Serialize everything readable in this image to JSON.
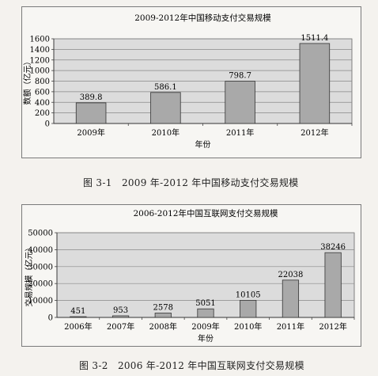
{
  "chart_data": [
    {
      "type": "bar",
      "title": "2009-2012年中国移动支付交易规模",
      "xlabel": "年份",
      "ylabel": "数额（亿元）",
      "categories": [
        "2009年",
        "2010年",
        "2011年",
        "2012年"
      ],
      "values": [
        389.8,
        586.1,
        798.7,
        1511.4
      ],
      "data_labels": [
        "389.8",
        "586.1",
        "798.7",
        "1511.4"
      ],
      "ylim": [
        0,
        1600
      ],
      "yticks": [
        "0",
        "200",
        "400",
        "600",
        "800",
        "1000",
        "1200",
        "1400",
        "1600"
      ],
      "grid": true,
      "colors": {
        "bar": "#a9a9a9",
        "grid": "#888888",
        "plot_bg": "#dcdcdc"
      }
    },
    {
      "type": "bar",
      "title": "2006-2012年中国互联网支付交易规模",
      "xlabel": "年份",
      "ylabel": "交易规模（亿元）",
      "categories": [
        "2006年",
        "2007年",
        "2008年",
        "2009年",
        "2010年",
        "2011年",
        "2012年"
      ],
      "values": [
        451,
        953,
        2578,
        5051,
        10105,
        22038,
        38246
      ],
      "data_labels": [
        "451",
        "953",
        "2578",
        "5051",
        "10105",
        "22038",
        "38246"
      ],
      "ylim": [
        0,
        50000
      ],
      "yticks": [
        "0",
        "10000",
        "20000",
        "30000",
        "40000",
        "50000"
      ],
      "grid": true,
      "colors": {
        "bar": "#a9a9a9",
        "grid": "#888888",
        "plot_bg": "#dcdcdc"
      }
    }
  ],
  "captions": {
    "fig1": "图 3-1　2009 年-2012 年中国移动支付交易规模",
    "fig2": "图 3-2　2006 年-2012 年中国互联网支付交易规模"
  }
}
